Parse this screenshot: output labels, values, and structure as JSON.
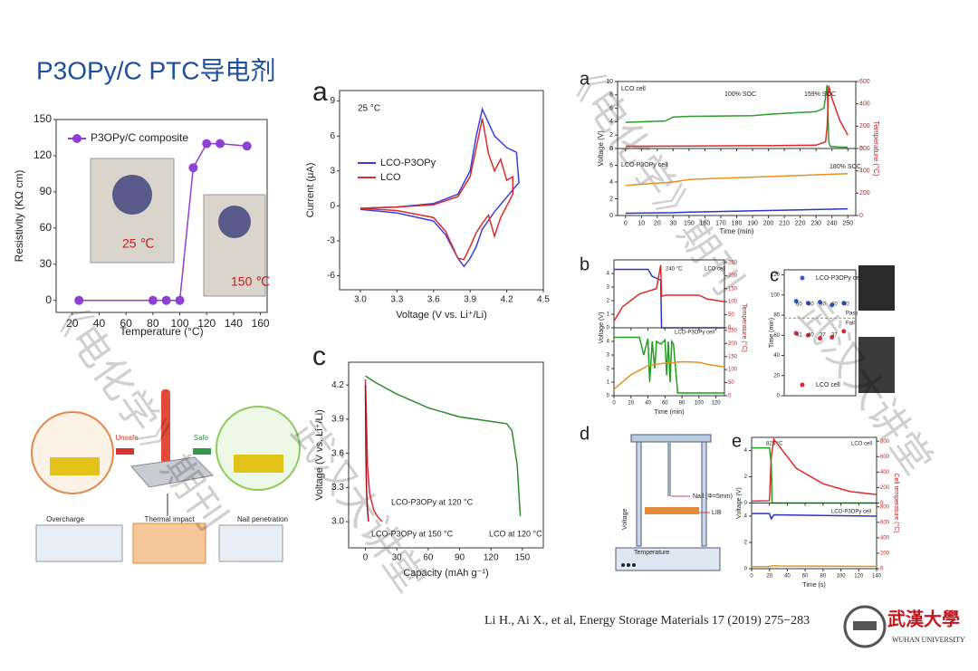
{
  "title": "P3OPy/C PTC导电剂",
  "citation": "Li H., Ai X., et al, Energy Storage Materials 17 (2019) 275−283",
  "university": {
    "name_cn": "武漢大學",
    "name_en": "WUHAN UNIVERSITY"
  },
  "watermarks": [
    "《电化学》期刊",
    "武汉大讲堂"
  ],
  "scheme": {
    "labels": [
      "Unsafe",
      "Safe",
      "Overcharge",
      "Thermal impact",
      "Nail penetration"
    ]
  },
  "setup_d": {
    "panel": "d",
    "labels": [
      "Nail (Φ=5mm)",
      "LIB",
      "Voltage",
      "Temperature"
    ]
  },
  "chart_data": [
    {
      "type": "line",
      "markers": true,
      "xlabel": "Temperature (°C)",
      "ylabel": "Resistivity (KΩ cm)",
      "xlim": [
        8,
        165
      ],
      "xticks": [
        20,
        40,
        60,
        80,
        100,
        120,
        140,
        160
      ],
      "ylim": [
        -10,
        150
      ],
      "yticks": [
        0,
        30,
        60,
        90,
        120,
        150
      ],
      "legend": "upper left",
      "series": [
        {
          "name": "P3OPy/C composite",
          "color": "#8e3fd4",
          "x": [
            25,
            80,
            90,
            100,
            110,
            120,
            130,
            150
          ],
          "values": [
            0,
            0,
            0,
            0,
            110,
            130,
            130,
            128
          ]
        }
      ],
      "annotations": [
        "25 ℃",
        "150 ℃"
      ]
    },
    {
      "type": "line",
      "panel": "a",
      "xlabel": "Voltage (V vs. Li⁺/Li)",
      "ylabel": "Current (μA)",
      "xlim": [
        2.83,
        4.5
      ],
      "xticks": [
        {
          "value": 3,
          "label": "3.0"
        },
        3.3,
        3.6,
        3.9,
        4.2,
        4.5
      ],
      "ylim": [
        -7.2,
        9.9
      ],
      "yticks": [
        -6,
        -3,
        0,
        3,
        6,
        9
      ],
      "legend": "center left",
      "series": [
        {
          "name": "LCO-P3OPy",
          "color": "#3b3fd8",
          "x": [
            3.0,
            3.3,
            3.6,
            3.8,
            3.9,
            3.95,
            4.0,
            4.1,
            4.2,
            4.28,
            4.3,
            4.1,
            4.0,
            3.95,
            3.9,
            3.85,
            3.8,
            3.7,
            3.6,
            3.3,
            3.0
          ],
          "values": [
            -0.2,
            -0.1,
            0.2,
            1,
            3,
            6,
            8.3,
            6,
            5,
            4.6,
            2,
            -0.5,
            -2,
            -3.5,
            -4.5,
            -5.2,
            -4.5,
            -2.5,
            -1.3,
            -0.6,
            -0.3
          ]
        },
        {
          "name": "LCO",
          "color": "#d92b2b",
          "x": [
            3.0,
            3.3,
            3.6,
            3.8,
            3.9,
            3.95,
            4.0,
            4.05,
            4.1,
            4.15,
            4.2,
            4.25,
            4.25,
            4.15,
            4.1,
            4.05,
            4.0,
            3.95,
            3.9,
            3.85,
            3.8,
            3.7,
            3.6,
            3.3,
            3.0
          ],
          "values": [
            -0.2,
            -0.1,
            0.1,
            0.8,
            2.5,
            5,
            7.5,
            4.5,
            3,
            4,
            2.2,
            2.5,
            1,
            -1,
            -2.6,
            -0.8,
            -1.5,
            -2.3,
            -3.5,
            -4.6,
            -4.5,
            -2.2,
            -1,
            -0.4,
            -0.2
          ]
        }
      ],
      "annotations": [
        "25 °C"
      ]
    },
    {
      "type": "line",
      "panel": "c",
      "xlabel": "Capacity (mAh g⁻¹)",
      "ylabel": "Voltage (V vs. Li⁺/Li)",
      "xlim": [
        -16,
        170
      ],
      "xticks": [
        0,
        30,
        60,
        90,
        120,
        150
      ],
      "ylim": [
        2.77,
        4.4
      ],
      "yticks": [
        {
          "value": 3,
          "label": "3.0"
        },
        3.3,
        3.6,
        3.9,
        4.2
      ],
      "series": [
        {
          "name": "LCO-P3OPy at 120 °C",
          "color": "#e0263a",
          "x": [
            0,
            1,
            2,
            4,
            8,
            12,
            16
          ],
          "values": [
            4.25,
            3.9,
            3.5,
            3.25,
            3.1,
            3.04,
            3.0
          ]
        },
        {
          "name": "LCO-P3OPy at 150 °C",
          "color": "#a01020",
          "x": [
            0,
            0.5,
            1,
            2,
            3
          ],
          "values": [
            4.2,
            3.6,
            3.3,
            3.1,
            3.0
          ]
        },
        {
          "name": "LCO at 120 °C",
          "color": "#2e8b2e",
          "x": [
            0,
            10,
            30,
            60,
            90,
            120,
            135,
            140,
            145,
            148
          ],
          "values": [
            4.28,
            4.22,
            4.12,
            4.0,
            3.92,
            3.88,
            3.86,
            3.8,
            3.5,
            3.05
          ]
        }
      ]
    },
    {
      "type": "line",
      "panel": "a",
      "axis_break": true,
      "xlabel": "Time (min)",
      "ylabel": "Voltage (V)",
      "y2label": "Temperature (°C)",
      "xticks": [
        0,
        10,
        20,
        30,
        150,
        160,
        170,
        180,
        190,
        200,
        210,
        220,
        230,
        240,
        250
      ],
      "subplots": [
        {
          "ylim": [
            0,
            10
          ],
          "yticks": [
            0,
            2,
            4,
            6,
            8,
            10
          ],
          "y2lim": [
            0,
            600
          ],
          "y2ticks": [
            0,
            200,
            400,
            600
          ],
          "series": [
            {
              "color": "#2e9b2e",
              "x": [
                0,
                25,
                30,
                150,
                190,
                200,
                230,
                235,
                237,
                238,
                239,
                245,
                250
              ],
              "values": [
                3.9,
                4.1,
                4.7,
                4.8,
                4.9,
                5.1,
                5.5,
                6,
                9.5,
                1,
                0.3,
                0.2,
                0.2
              ]
            },
            {
              "color": "#e02828",
              "axis": "y2",
              "x": [
                0,
                190,
                200,
                230,
                236,
                237,
                238,
                240,
                245,
                250
              ],
              "values": [
                20,
                25,
                25,
                30,
                60,
                200,
                560,
                450,
                250,
                120
              ]
            }
          ],
          "annotations": [
            "LCO cell",
            "100% SOC",
            "159% SOC"
          ]
        },
        {
          "ylim": [
            0,
            8
          ],
          "yticks": [
            0,
            2,
            4,
            6,
            8
          ],
          "y2lim": [
            0,
            600
          ],
          "y2ticks": [
            0,
            200,
            400,
            600
          ],
          "series": [
            {
              "color": "#e8901e",
              "x": [
                0,
                30,
                150,
                250
              ],
              "values": [
                3.6,
                4.0,
                4.3,
                5.0
              ]
            },
            {
              "color": "#2a36c8",
              "axis": "y2",
              "x": [
                0,
                30,
                150,
                250
              ],
              "values": [
                20,
                25,
                30,
                60
              ]
            }
          ],
          "annotations": [
            "LCO-P3OPy cell",
            "180% SOC"
          ]
        }
      ]
    },
    {
      "type": "line",
      "panel": "b",
      "xlabel": "Time (min)",
      "ylabel": "Voltage (V)",
      "y2label": "Temperature (°C)",
      "xlim": [
        0,
        130
      ],
      "xticks": [
        0,
        20,
        40,
        60,
        80,
        100,
        120
      ],
      "subplots": [
        {
          "ylim": [
            0,
            5
          ],
          "yticks": [
            0,
            1,
            2,
            3,
            4
          ],
          "y2lim": [
            0,
            260
          ],
          "y2ticks": [
            0,
            50,
            100,
            150,
            200,
            250
          ],
          "series": [
            {
              "color": "#2a36c8",
              "x": [
                0,
                40,
                45,
                55,
                56,
                130
              ],
              "values": [
                4.3,
                4.3,
                3.8,
                3.5,
                0,
                0
              ]
            },
            {
              "color": "#e02828",
              "axis": "y2",
              "x": [
                0,
                10,
                30,
                50,
                55,
                56,
                60,
                100,
                110,
                130
              ],
              "values": [
                25,
                80,
                130,
                150,
                240,
                120,
                125,
                125,
                110,
                100
              ]
            }
          ],
          "annotations": [
            "240 °C",
            "LCO cell"
          ]
        },
        {
          "ylim": [
            0,
            5
          ],
          "yticks": [
            0,
            1,
            2,
            3,
            4
          ],
          "y2lim": [
            0,
            260
          ],
          "y2ticks": [
            0,
            50,
            100,
            150,
            200,
            250
          ],
          "series": [
            {
              "color": "#1f9e1f",
              "x": [
                0,
                30,
                35,
                40,
                42,
                45,
                48,
                50,
                55,
                60,
                62,
                64,
                66,
                68,
                70,
                75,
                130
              ],
              "values": [
                4.3,
                4.3,
                3,
                4.2,
                1,
                4,
                2,
                4,
                3.8,
                4.1,
                1.5,
                4,
                1,
                4,
                3.8,
                0.2,
                0.2
              ]
            },
            {
              "color": "#e8901e",
              "axis": "y2",
              "x": [
                0,
                20,
                40,
                60,
                80,
                100,
                110,
                130
              ],
              "values": [
                25,
                80,
                115,
                125,
                130,
                128,
                120,
                110
              ]
            }
          ],
          "annotations": [
            "LCO-P3OPy cell"
          ]
        }
      ]
    },
    {
      "type": "scatter",
      "panel": "c",
      "ylabel": "Time (min)",
      "xlim": [
        0,
        6
      ],
      "ylim": [
        0,
        125
      ],
      "yticks": [
        0,
        20,
        40,
        60,
        80,
        100,
        120
      ],
      "threshold": 77,
      "series": [
        {
          "name": "LCO-P3OPy cell",
          "color": "#3b57c8",
          "x": [
            1,
            2,
            3,
            4,
            5
          ],
          "values": [
            94,
            92,
            93,
            90,
            92
          ]
        },
        {
          "name": "LCO cell",
          "color": "#d92b2b",
          "x": [
            1,
            2,
            3,
            4,
            5
          ],
          "values": [
            62,
            60,
            57,
            58,
            64
          ]
        }
      ],
      "annotations": [
        "60",
        "60",
        "60",
        "60",
        "60",
        "41",
        "40",
        "37",
        "37",
        "Pass",
        "Fail"
      ]
    },
    {
      "type": "line",
      "panel": "e",
      "xlabel": "Time (s)",
      "ylabel": "Voltage (V)",
      "y2label": "Cell temperature (°C)",
      "xlim": [
        0,
        140
      ],
      "xticks": [
        0,
        20,
        40,
        60,
        80,
        100,
        120,
        140
      ],
      "subplots": [
        {
          "ylim": [
            0,
            5
          ],
          "yticks": [
            0,
            2,
            4
          ],
          "y2lim": [
            0,
            850
          ],
          "y2ticks": [
            0,
            200,
            400,
            600,
            800
          ],
          "series": [
            {
              "color": "#1f9e1f",
              "x": [
                0,
                20,
                22,
                23,
                140
              ],
              "values": [
                4.2,
                4.2,
                3,
                0,
                0
              ]
            },
            {
              "color": "#e02828",
              "axis": "y2",
              "x": [
                0,
                20,
                22,
                25,
                30,
                50,
                80,
                110,
                140
              ],
              "values": [
                25,
                30,
                600,
                823,
                750,
                450,
                250,
                150,
                110
              ]
            }
          ],
          "annotations": [
            "823 °C",
            "LCO cell"
          ]
        },
        {
          "ylim": [
            0,
            5
          ],
          "yticks": [
            0,
            2,
            4
          ],
          "y2lim": [
            0,
            850
          ],
          "y2ticks": [
            0,
            200,
            400,
            600,
            800
          ],
          "series": [
            {
              "color": "#2a36c8",
              "x": [
                0,
                20,
                22,
                25,
                140
              ],
              "values": [
                4.2,
                4.2,
                3.8,
                4.1,
                4.0
              ]
            },
            {
              "color": "#e8901e",
              "axis": "y2",
              "x": [
                0,
                20,
                25,
                30,
                140
              ],
              "values": [
                25,
                28,
                40,
                35,
                30
              ]
            }
          ],
          "annotations": [
            "LCO-P3OPy cell"
          ]
        }
      ]
    }
  ]
}
